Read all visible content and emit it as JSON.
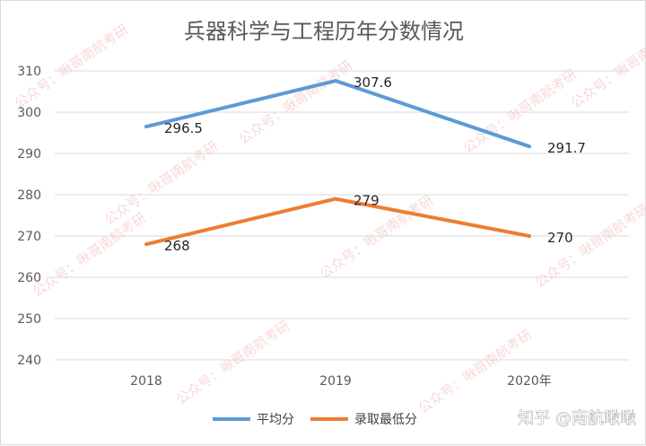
{
  "chart_data": {
    "type": "line",
    "title": "兵器科学与工程历年分数情况",
    "categories": [
      "2018",
      "2019",
      "2020年"
    ],
    "series": [
      {
        "name": "平均分",
        "values": [
          296.5,
          307.6,
          291.7
        ],
        "labels": [
          "296.5",
          "307.6",
          "291.7"
        ],
        "color": "#5b9bd5"
      },
      {
        "name": "录取最低分",
        "values": [
          268,
          279,
          270
        ],
        "labels": [
          "268",
          "279",
          "270"
        ],
        "color": "#ed7d31"
      }
    ],
    "yticks": [
      "240",
      "250",
      "260",
      "270",
      "280",
      "290",
      "300",
      "310"
    ],
    "ylim": [
      240,
      310
    ],
    "grid": true,
    "legend": "bottom"
  },
  "watermark": "公众号：啾哥南航考研",
  "credit": "知乎 @南航啾啾"
}
